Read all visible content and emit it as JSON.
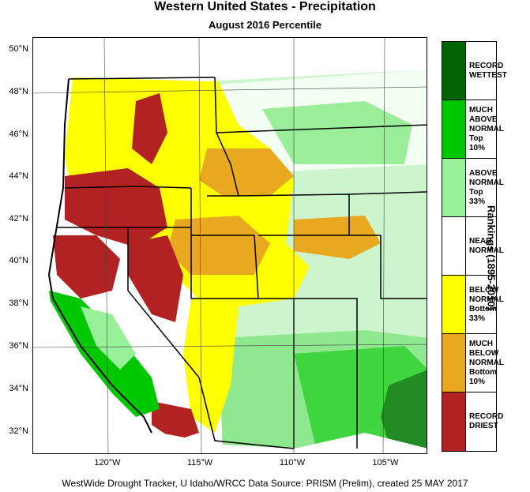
{
  "title": "Western United States - Precipitation",
  "subtitle": "August 2016 Percentile",
  "credit": "WestWide Drought Tracker, U Idaho/WRCC Data Source: PRISM (Prelim), created 25 MAY 2017",
  "ranking_label": "Rankings (1895-2010)",
  "latitude_ticks": [
    "50°N",
    "48°N",
    "46°N",
    "44°N",
    "42°N",
    "40°N",
    "38°N",
    "36°N",
    "34°N",
    "32°N"
  ],
  "longitude_ticks": [
    "120°W",
    "115°W",
    "110°W",
    "105°W"
  ],
  "legend": [
    {
      "label": "RECORD\nWETTEST",
      "color": "#006400"
    },
    {
      "label": "MUCH\nABOVE\nNORMAL\nTop 10%",
      "color": "#00c800"
    },
    {
      "label": "ABOVE\nNORMAL\nTop 33%",
      "color": "#98f098"
    },
    {
      "label": "NEAR\nNORMAL",
      "color": "#ffffff"
    },
    {
      "label": "BELOW\nNORMAL\nBottom 33%",
      "color": "#ffff00"
    },
    {
      "label": "MUCH\nBELOW\nNORMAL\nBottom 10%",
      "color": "#e8a820"
    },
    {
      "label": "RECORD\nDRIEST",
      "color": "#b22222"
    }
  ]
}
